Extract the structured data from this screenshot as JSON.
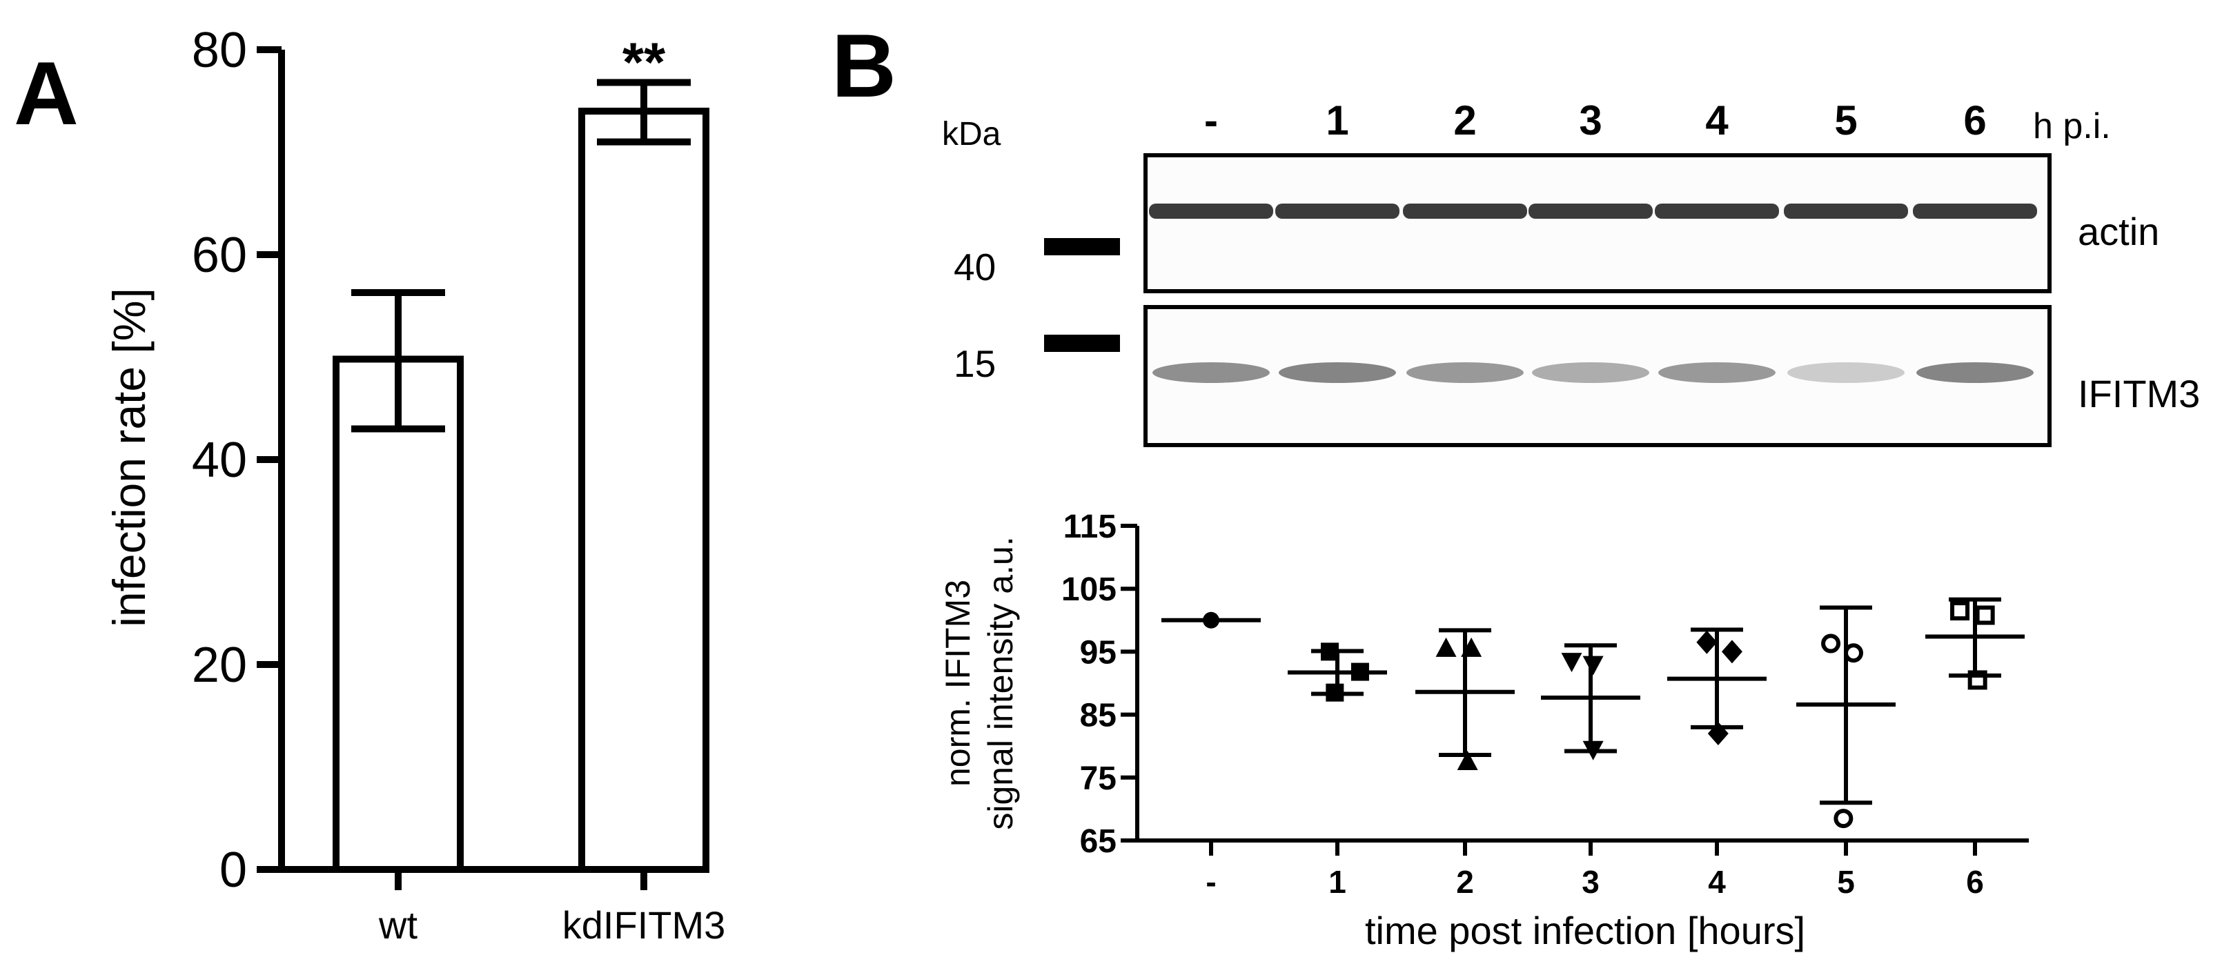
{
  "panels": {
    "a_label": "A",
    "b_label": "B"
  },
  "chart_data": [
    {
      "type": "bar",
      "panel": "A",
      "categories": [
        "wt",
        "kdIFITM3"
      ],
      "values": [
        49.8,
        74.0
      ],
      "error_low": [
        43.0,
        71.0
      ],
      "error_high": [
        56.3,
        76.8
      ],
      "annotations": [
        "",
        "**"
      ],
      "ylabel": "infection rate [%]",
      "xlabel": "",
      "ylim": [
        0,
        80
      ],
      "yticks": [
        0,
        20,
        40,
        60,
        80
      ],
      "grid": false
    },
    {
      "type": "scatter",
      "panel": "B",
      "xlabel": "time post infection [hours]",
      "ylabel_line1": "norm. IFITM3",
      "ylabel_line2": "signal intensity a.u.",
      "ylim": [
        65,
        115
      ],
      "yticks": [
        65,
        75,
        85,
        95,
        105,
        115
      ],
      "categories": [
        "-",
        "1",
        "2",
        "3",
        "4",
        "5",
        "6"
      ],
      "grid": false,
      "groups": [
        {
          "category": "-",
          "marker": "circle-filled",
          "points": [
            [
              0.0,
              100.0
            ]
          ],
          "mean": 100.0,
          "sd_low": 100.0,
          "sd_high": 100.0
        },
        {
          "category": "1",
          "marker": "square-filled",
          "points": [
            [
              -0.06,
              95.0
            ],
            [
              0.18,
              91.8
            ],
            [
              -0.02,
              88.5
            ]
          ],
          "mean": 91.7,
          "sd_low": 88.3,
          "sd_high": 95.1
        },
        {
          "category": "2",
          "marker": "triangle-up-filled",
          "points": [
            [
              -0.15,
              95.5
            ],
            [
              0.05,
              95.5
            ],
            [
              0.02,
              77.5
            ]
          ],
          "mean": 88.6,
          "sd_low": 78.6,
          "sd_high": 98.4
        },
        {
          "category": "3",
          "marker": "triangle-down-filled",
          "points": [
            [
              -0.15,
              93.5
            ],
            [
              0.02,
              93.0
            ],
            [
              0.02,
              79.5
            ]
          ],
          "mean": 87.7,
          "sd_low": 79.2,
          "sd_high": 96.0
        },
        {
          "category": "4",
          "marker": "diamond-filled",
          "points": [
            [
              -0.08,
              96.5
            ],
            [
              0.12,
              95.0
            ],
            [
              0.01,
              82.0
            ]
          ],
          "mean": 90.7,
          "sd_low": 83.0,
          "sd_high": 98.5
        },
        {
          "category": "5",
          "marker": "circle-open",
          "points": [
            [
              -0.12,
              96.3
            ],
            [
              0.06,
              94.8
            ],
            [
              -0.02,
              68.5
            ]
          ],
          "mean": 86.6,
          "sd_low": 71.0,
          "sd_high": 102.0
        },
        {
          "category": "6",
          "marker": "square-open",
          "points": [
            [
              -0.12,
              101.5
            ],
            [
              0.08,
              100.8
            ],
            [
              0.02,
              90.5
            ]
          ],
          "mean": 97.4,
          "sd_low": 91.2,
          "sd_high": 103.3
        }
      ]
    }
  ],
  "blot": {
    "kda_label": "kDa",
    "lanes": [
      "-",
      "1",
      "2",
      "3",
      "4",
      "5",
      "6"
    ],
    "hpi_label": "h p.i.",
    "markers": [
      "40",
      "15"
    ],
    "band_labels": [
      "actin",
      "IFITM3"
    ],
    "actin_intensity": [
      0.85,
      0.85,
      0.85,
      0.85,
      0.85,
      0.85,
      0.85
    ],
    "ifitm3_intensity": [
      0.55,
      0.6,
      0.5,
      0.4,
      0.5,
      0.25,
      0.6
    ]
  }
}
